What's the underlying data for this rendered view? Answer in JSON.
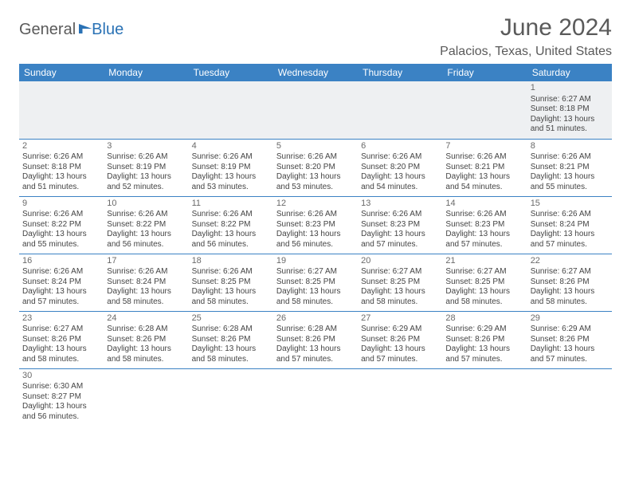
{
  "logo": {
    "word1": "General",
    "word2": "Blue",
    "word1_color": "#5a5a5a",
    "word2_color": "#2a72b5"
  },
  "title": "June 2024",
  "location": "Palacios, Texas, United States",
  "colors": {
    "header_bg": "#3b82c4",
    "header_fg": "#ffffff",
    "grid_line": "#3b82c4",
    "firstweek_bg": "#eef0f2",
    "text": "#444444",
    "title_color": "#5a5a5a"
  },
  "day_headers": [
    "Sunday",
    "Monday",
    "Tuesday",
    "Wednesday",
    "Thursday",
    "Friday",
    "Saturday"
  ],
  "weeks": [
    [
      null,
      null,
      null,
      null,
      null,
      null,
      {
        "n": "1",
        "sr": "Sunrise: 6:27 AM",
        "ss": "Sunset: 8:18 PM",
        "d1": "Daylight: 13 hours",
        "d2": "and 51 minutes."
      }
    ],
    [
      {
        "n": "2",
        "sr": "Sunrise: 6:26 AM",
        "ss": "Sunset: 8:18 PM",
        "d1": "Daylight: 13 hours",
        "d2": "and 51 minutes."
      },
      {
        "n": "3",
        "sr": "Sunrise: 6:26 AM",
        "ss": "Sunset: 8:19 PM",
        "d1": "Daylight: 13 hours",
        "d2": "and 52 minutes."
      },
      {
        "n": "4",
        "sr": "Sunrise: 6:26 AM",
        "ss": "Sunset: 8:19 PM",
        "d1": "Daylight: 13 hours",
        "d2": "and 53 minutes."
      },
      {
        "n": "5",
        "sr": "Sunrise: 6:26 AM",
        "ss": "Sunset: 8:20 PM",
        "d1": "Daylight: 13 hours",
        "d2": "and 53 minutes."
      },
      {
        "n": "6",
        "sr": "Sunrise: 6:26 AM",
        "ss": "Sunset: 8:20 PM",
        "d1": "Daylight: 13 hours",
        "d2": "and 54 minutes."
      },
      {
        "n": "7",
        "sr": "Sunrise: 6:26 AM",
        "ss": "Sunset: 8:21 PM",
        "d1": "Daylight: 13 hours",
        "d2": "and 54 minutes."
      },
      {
        "n": "8",
        "sr": "Sunrise: 6:26 AM",
        "ss": "Sunset: 8:21 PM",
        "d1": "Daylight: 13 hours",
        "d2": "and 55 minutes."
      }
    ],
    [
      {
        "n": "9",
        "sr": "Sunrise: 6:26 AM",
        "ss": "Sunset: 8:22 PM",
        "d1": "Daylight: 13 hours",
        "d2": "and 55 minutes."
      },
      {
        "n": "10",
        "sr": "Sunrise: 6:26 AM",
        "ss": "Sunset: 8:22 PM",
        "d1": "Daylight: 13 hours",
        "d2": "and 56 minutes."
      },
      {
        "n": "11",
        "sr": "Sunrise: 6:26 AM",
        "ss": "Sunset: 8:22 PM",
        "d1": "Daylight: 13 hours",
        "d2": "and 56 minutes."
      },
      {
        "n": "12",
        "sr": "Sunrise: 6:26 AM",
        "ss": "Sunset: 8:23 PM",
        "d1": "Daylight: 13 hours",
        "d2": "and 56 minutes."
      },
      {
        "n": "13",
        "sr": "Sunrise: 6:26 AM",
        "ss": "Sunset: 8:23 PM",
        "d1": "Daylight: 13 hours",
        "d2": "and 57 minutes."
      },
      {
        "n": "14",
        "sr": "Sunrise: 6:26 AM",
        "ss": "Sunset: 8:23 PM",
        "d1": "Daylight: 13 hours",
        "d2": "and 57 minutes."
      },
      {
        "n": "15",
        "sr": "Sunrise: 6:26 AM",
        "ss": "Sunset: 8:24 PM",
        "d1": "Daylight: 13 hours",
        "d2": "and 57 minutes."
      }
    ],
    [
      {
        "n": "16",
        "sr": "Sunrise: 6:26 AM",
        "ss": "Sunset: 8:24 PM",
        "d1": "Daylight: 13 hours",
        "d2": "and 57 minutes."
      },
      {
        "n": "17",
        "sr": "Sunrise: 6:26 AM",
        "ss": "Sunset: 8:24 PM",
        "d1": "Daylight: 13 hours",
        "d2": "and 58 minutes."
      },
      {
        "n": "18",
        "sr": "Sunrise: 6:26 AM",
        "ss": "Sunset: 8:25 PM",
        "d1": "Daylight: 13 hours",
        "d2": "and 58 minutes."
      },
      {
        "n": "19",
        "sr": "Sunrise: 6:27 AM",
        "ss": "Sunset: 8:25 PM",
        "d1": "Daylight: 13 hours",
        "d2": "and 58 minutes."
      },
      {
        "n": "20",
        "sr": "Sunrise: 6:27 AM",
        "ss": "Sunset: 8:25 PM",
        "d1": "Daylight: 13 hours",
        "d2": "and 58 minutes."
      },
      {
        "n": "21",
        "sr": "Sunrise: 6:27 AM",
        "ss": "Sunset: 8:25 PM",
        "d1": "Daylight: 13 hours",
        "d2": "and 58 minutes."
      },
      {
        "n": "22",
        "sr": "Sunrise: 6:27 AM",
        "ss": "Sunset: 8:26 PM",
        "d1": "Daylight: 13 hours",
        "d2": "and 58 minutes."
      }
    ],
    [
      {
        "n": "23",
        "sr": "Sunrise: 6:27 AM",
        "ss": "Sunset: 8:26 PM",
        "d1": "Daylight: 13 hours",
        "d2": "and 58 minutes."
      },
      {
        "n": "24",
        "sr": "Sunrise: 6:28 AM",
        "ss": "Sunset: 8:26 PM",
        "d1": "Daylight: 13 hours",
        "d2": "and 58 minutes."
      },
      {
        "n": "25",
        "sr": "Sunrise: 6:28 AM",
        "ss": "Sunset: 8:26 PM",
        "d1": "Daylight: 13 hours",
        "d2": "and 58 minutes."
      },
      {
        "n": "26",
        "sr": "Sunrise: 6:28 AM",
        "ss": "Sunset: 8:26 PM",
        "d1": "Daylight: 13 hours",
        "d2": "and 57 minutes."
      },
      {
        "n": "27",
        "sr": "Sunrise: 6:29 AM",
        "ss": "Sunset: 8:26 PM",
        "d1": "Daylight: 13 hours",
        "d2": "and 57 minutes."
      },
      {
        "n": "28",
        "sr": "Sunrise: 6:29 AM",
        "ss": "Sunset: 8:26 PM",
        "d1": "Daylight: 13 hours",
        "d2": "and 57 minutes."
      },
      {
        "n": "29",
        "sr": "Sunrise: 6:29 AM",
        "ss": "Sunset: 8:26 PM",
        "d1": "Daylight: 13 hours",
        "d2": "and 57 minutes."
      }
    ],
    [
      {
        "n": "30",
        "sr": "Sunrise: 6:30 AM",
        "ss": "Sunset: 8:27 PM",
        "d1": "Daylight: 13 hours",
        "d2": "and 56 minutes."
      },
      null,
      null,
      null,
      null,
      null,
      null
    ]
  ]
}
